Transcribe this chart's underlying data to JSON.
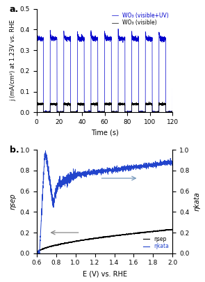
{
  "panel_a": {
    "title": "a.",
    "xlabel": "Time (s)",
    "ylabel": "j (mA/cm²) at 1.23V vs. RHE",
    "xlim": [
      0,
      120
    ],
    "ylim": [
      0,
      0.5
    ],
    "yticks": [
      0.0,
      0.1,
      0.2,
      0.3,
      0.4,
      0.5
    ],
    "xticks": [
      0,
      20,
      40,
      60,
      80,
      100,
      120
    ],
    "blue_on_level": 0.355,
    "blue_spike_level": 0.39,
    "blue_off_level": 0.0,
    "black_on_level": 0.04,
    "black_off_level": 0.0,
    "on_duration": 6,
    "off_duration": 6,
    "blue_color": "#0000cc",
    "black_color": "#000000",
    "legend_blue": "WO₃ (visible+UV)",
    "legend_black": "WO₃ (visible)"
  },
  "panel_b": {
    "title": "b.",
    "xlabel": "E (V) vs. RHE",
    "ylabel_left": "ηsep",
    "ylabel_right": "ηkata",
    "xlim": [
      0.6,
      2.0
    ],
    "ylim": [
      0,
      1
    ],
    "xticks": [
      0.6,
      0.8,
      1.0,
      1.2,
      1.4,
      1.6,
      1.8,
      2.0
    ],
    "yticks": [
      0.0,
      0.2,
      0.4,
      0.6,
      0.8,
      1.0
    ],
    "blue_color": "#2244cc",
    "black_color": "#000000",
    "legend_black": "ηsep",
    "legend_blue": "ηkata",
    "arrow_left_color": "#888888",
    "arrow_right_color": "#7799bb"
  }
}
